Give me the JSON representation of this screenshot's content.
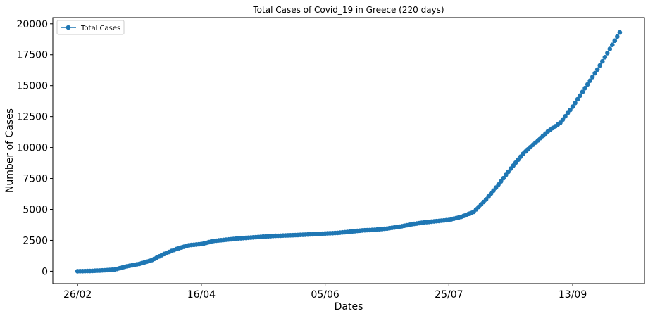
{
  "chart_data": {
    "type": "line",
    "title": "Total Cases of Covid_19 in Greece (220 days)",
    "xlabel": "Dates",
    "ylabel": "Number of Cases",
    "x_tick_labels": [
      "26/02",
      "16/04",
      "05/06",
      "25/07",
      "13/09"
    ],
    "x_tick_days": [
      0,
      50,
      100,
      150,
      200
    ],
    "ylim": [
      -1000,
      20500
    ],
    "y_ticks": [
      0,
      2500,
      5000,
      7500,
      10000,
      12500,
      15000,
      17500,
      20000
    ],
    "y_tick_labels": [
      "0",
      "2500",
      "5000",
      "7500",
      "10000",
      "12500",
      "15000",
      "17500",
      "20000"
    ],
    "grid": false,
    "legend_placement": "top-left",
    "series": [
      {
        "name": "Total Cases",
        "color": "#1f77b4",
        "marker": "circle",
        "x_days": [
          0,
          5,
          10,
          15,
          20,
          25,
          30,
          35,
          40,
          45,
          50,
          55,
          60,
          65,
          70,
          75,
          80,
          85,
          90,
          95,
          100,
          105,
          110,
          115,
          120,
          125,
          130,
          135,
          140,
          145,
          150,
          155,
          160,
          165,
          170,
          175,
          180,
          185,
          190,
          195,
          200,
          205,
          210,
          219
        ],
        "values": [
          0,
          20,
          70,
          130,
          400,
          600,
          900,
          1400,
          1800,
          2100,
          2200,
          2450,
          2550,
          2650,
          2720,
          2800,
          2860,
          2900,
          2940,
          2990,
          3050,
          3100,
          3200,
          3300,
          3350,
          3450,
          3600,
          3800,
          3950,
          4050,
          4150,
          4400,
          4800,
          5800,
          7000,
          8300,
          9500,
          10400,
          11300,
          12000,
          13300,
          14800,
          16300,
          19300
        ]
      }
    ]
  }
}
